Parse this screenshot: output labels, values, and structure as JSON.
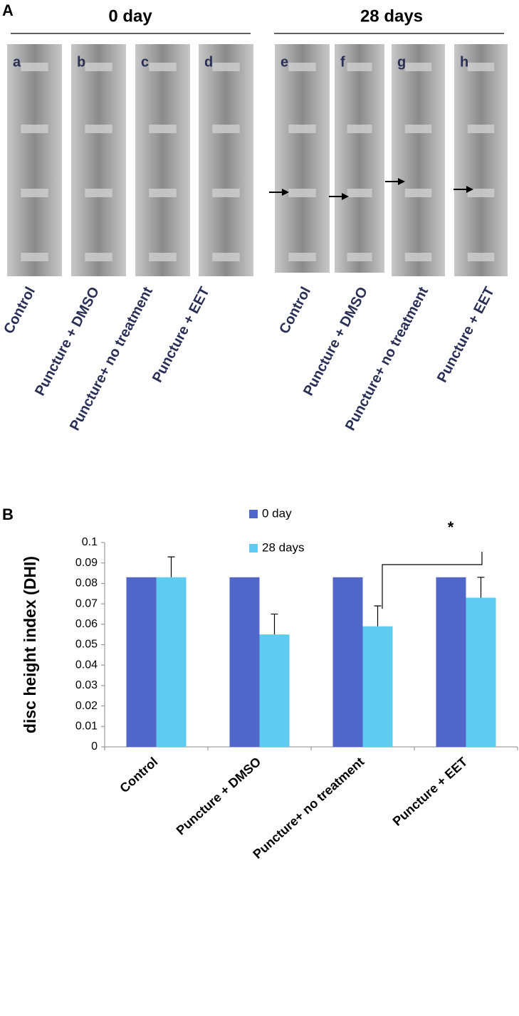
{
  "panel_a": {
    "label": "A",
    "groups": [
      {
        "title": "0 day",
        "images": [
          {
            "letter": "a",
            "caption": "Control"
          },
          {
            "letter": "b",
            "caption": "Puncture + DMSO"
          },
          {
            "letter": "c",
            "caption": "Puncture+ no treatment"
          },
          {
            "letter": "d",
            "caption": "Puncture + EET"
          }
        ]
      },
      {
        "title": "28 days",
        "images": [
          {
            "letter": "e",
            "caption": "Control"
          },
          {
            "letter": "f",
            "caption": "Puncture + DMSO"
          },
          {
            "letter": "g",
            "caption": "Puncture+ no treatment"
          },
          {
            "letter": "h",
            "caption": "Puncture + EET"
          }
        ]
      }
    ]
  },
  "chart_data": {
    "label": "B",
    "type": "bar",
    "ylabel": "disc height index (DHI)",
    "categories": [
      "Control",
      "Puncture + DMSO",
      "Puncture+ no treatment",
      "Puncture + EET"
    ],
    "series": [
      {
        "name": "0 day",
        "color": "#5066c9",
        "values": [
          0.083,
          0.083,
          0.083,
          0.083
        ]
      },
      {
        "name": "28 days",
        "color": "#5ecbf0",
        "values": [
          0.083,
          0.055,
          0.059,
          0.073
        ],
        "errors": [
          0.01,
          0.01,
          0.01,
          0.01
        ]
      }
    ],
    "ylim": [
      0,
      0.1
    ],
    "yticks": [
      0,
      0.01,
      0.02,
      0.03,
      0.04,
      0.05,
      0.06,
      0.07,
      0.08,
      0.09,
      0.1
    ],
    "annotations": [
      {
        "text": "*"
      }
    ]
  }
}
